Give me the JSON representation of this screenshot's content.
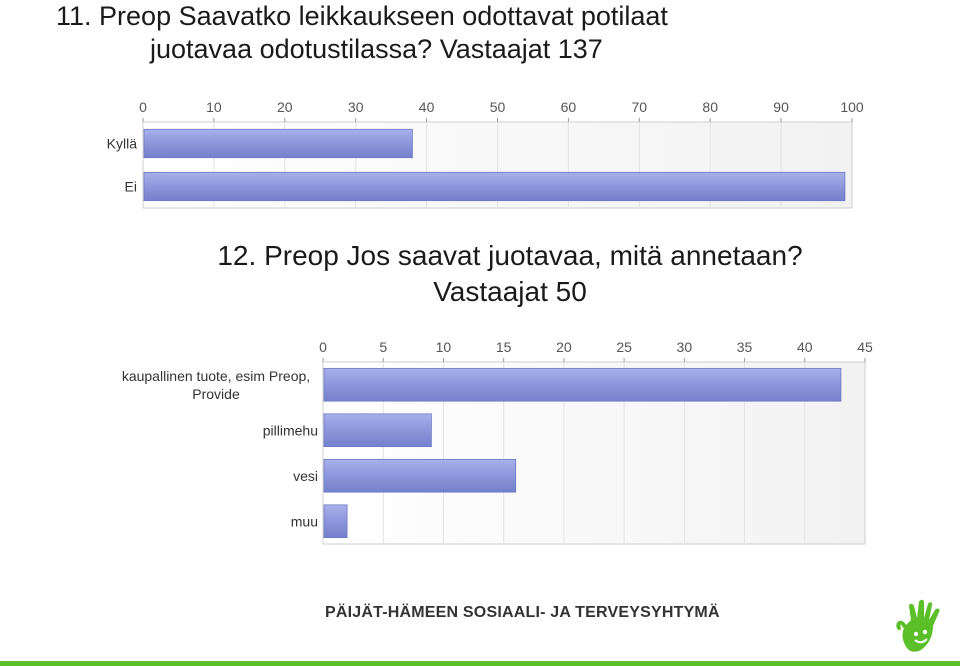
{
  "chart1": {
    "title_line1": "11. Preop Saavatko leikkaukseen odottavat potilaat",
    "title_line2": "juotavaa odotustilassa? Vastaajat 137"
  },
  "chart2": {
    "title_line1": "12. Preop Jos saavat juotavaa, mitä annetaan?",
    "title_line2": "Vastaajat 50"
  },
  "footer": "PÄIJÄT-HÄMEEN SOSIAALI- JA TERVEYSYHTYMÄ",
  "logo_icon": "hand-print-logo-icon",
  "colors": {
    "bar": "#8c96da",
    "bar_edge": "#6e78c4",
    "accent": "#5bbf2a"
  },
  "chart_data": [
    {
      "type": "bar",
      "orientation": "horizontal",
      "title": "11. Preop Saavatko leikkaukseen odottavat potilaat juotavaa odotustilassa? Vastaajat 137",
      "categories": [
        "Kyllä",
        "Ei"
      ],
      "values": [
        38,
        99
      ],
      "xlim": [
        0,
        100
      ],
      "ticks": [
        "0",
        "10",
        "20",
        "30",
        "40",
        "50",
        "60",
        "70",
        "80",
        "90",
        "100"
      ],
      "grid": true
    },
    {
      "type": "bar",
      "orientation": "horizontal",
      "title": "12. Preop Jos saavat juotavaa, mitä annetaan? Vastaajat 50",
      "categories": [
        "kaupallinen tuote, esim Preop, Provide",
        "pillimehu",
        "vesi",
        "muu"
      ],
      "values": [
        43,
        9,
        16,
        2
      ],
      "xlim": [
        0,
        45
      ],
      "ticks": [
        "0",
        "5",
        "10",
        "15",
        "20",
        "25",
        "30",
        "35",
        "40",
        "45"
      ],
      "grid": true
    }
  ]
}
